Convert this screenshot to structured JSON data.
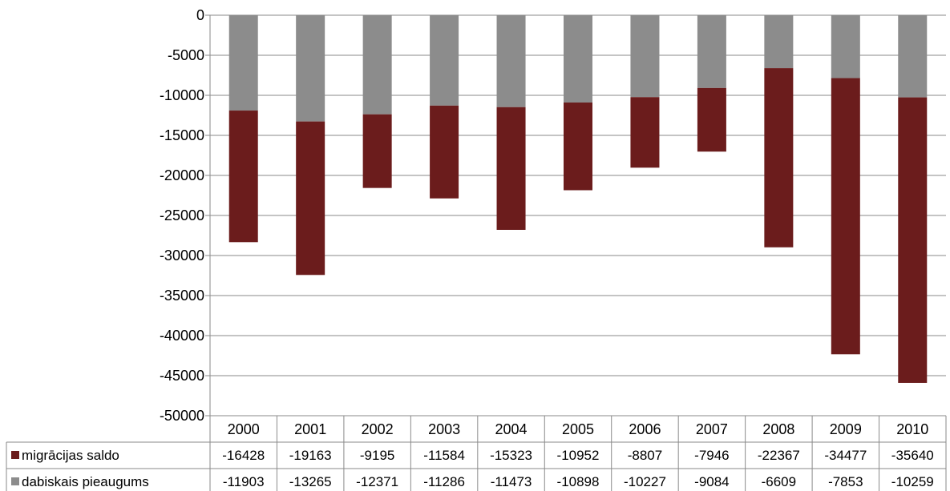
{
  "chart_data": {
    "type": "bar",
    "stacked": true,
    "categories": [
      "2000",
      "2001",
      "2002",
      "2003",
      "2004",
      "2005",
      "2006",
      "2007",
      "2008",
      "2009",
      "2010"
    ],
    "series": [
      {
        "name": "dabiskais pieaugums",
        "color": "#8c8c8c",
        "values": [
          -11903,
          -13265,
          -12371,
          -11286,
          -11473,
          -10898,
          -10227,
          -9084,
          -6609,
          -7853,
          -10259
        ]
      },
      {
        "name": "migrācijas saldo",
        "color": "#6b1c1c",
        "values": [
          -16428,
          -19163,
          -9195,
          -11584,
          -15323,
          -10952,
          -8807,
          -7946,
          -22367,
          -34477,
          -35640
        ]
      }
    ],
    "y_ticks": [
      0,
      -5000,
      -10000,
      -15000,
      -20000,
      -25000,
      -30000,
      -35000,
      -40000,
      -45000,
      -50000
    ],
    "ylim": [
      -50000,
      0
    ],
    "grid": true,
    "legend": "data-table-below",
    "title": "",
    "xlabel": "",
    "ylabel": ""
  }
}
